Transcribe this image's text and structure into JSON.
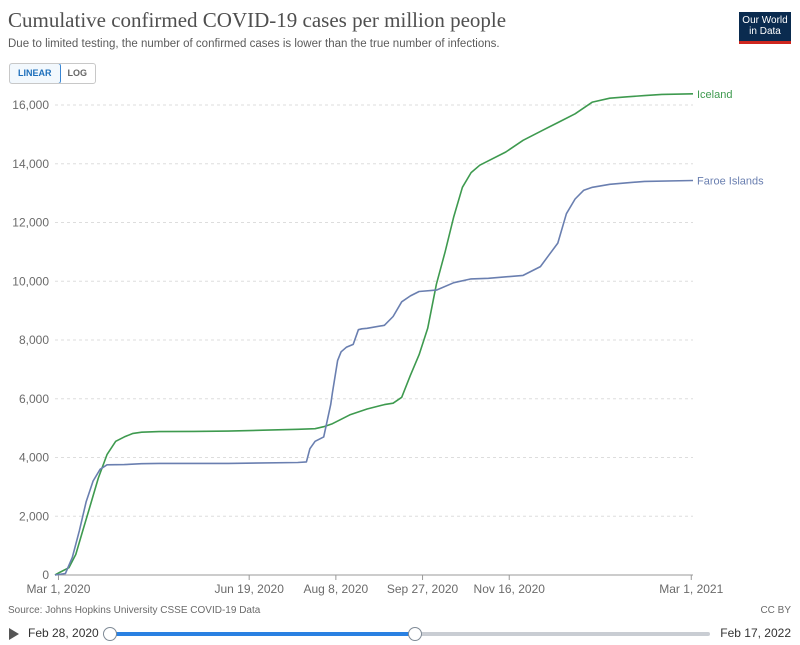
{
  "header": {
    "title": "Cumulative confirmed COVID-19 cases per million people",
    "subtitle": "Due to limited testing, the number of confirmed cases is lower than the true number of infections.",
    "logo_line1": "Our World",
    "logo_line2": "in Data"
  },
  "controls": {
    "linear_label": "LINEAR",
    "log_label": "LOG",
    "active_scale": "linear"
  },
  "footer": {
    "source": "Source: Johns Hopkins University CSSE COVID-19 Data",
    "license": "CC BY"
  },
  "timeline": {
    "start_date": "Feb 28, 2020",
    "end_date": "Feb 17, 2022",
    "range_start_fraction": 0.0,
    "range_end_fraction": 0.508
  },
  "colors": {
    "iceland": "#3e9a4f",
    "faroe": "#6a7fb0",
    "grid": "#dddddd",
    "axis_text": "#6b6b6b"
  },
  "chart_data": {
    "type": "line",
    "title": "Cumulative confirmed COVID-19 cases per million people",
    "xlabel": "",
    "ylabel": "",
    "x_unit": "days since Feb 28, 2020",
    "xlim": [
      0,
      368
    ],
    "ylim": [
      0,
      16000
    ],
    "y_ticks": [
      0,
      2000,
      4000,
      6000,
      8000,
      10000,
      12000,
      14000,
      16000
    ],
    "y_tick_labels": [
      "0",
      "2,000",
      "4,000",
      "6,000",
      "8,000",
      "10,000",
      "12,000",
      "14,000",
      "16,000"
    ],
    "x_ticks": [
      2,
      112,
      162,
      212,
      262,
      367
    ],
    "x_tick_labels": [
      "Mar 1, 2020",
      "Jun 19, 2020",
      "Aug 8, 2020",
      "Sep 27, 2020",
      "Nov 16, 2020",
      "Mar 1, 2021"
    ],
    "grid": true,
    "series": [
      {
        "name": "Iceland",
        "label": "Iceland",
        "color": "#3e9a4f",
        "x": [
          0,
          3,
          8,
          12,
          16,
          20,
          25,
          30,
          35,
          40,
          45,
          50,
          60,
          80,
          100,
          120,
          140,
          150,
          155,
          160,
          165,
          170,
          180,
          190,
          195,
          200,
          205,
          210,
          215,
          220,
          225,
          230,
          235,
          240,
          245,
          250,
          260,
          270,
          280,
          290,
          300,
          310,
          320,
          330,
          340,
          350,
          368
        ],
        "y": [
          0,
          100,
          250,
          700,
          1500,
          2300,
          3300,
          4100,
          4550,
          4700,
          4820,
          4860,
          4880,
          4890,
          4900,
          4930,
          4960,
          4980,
          5050,
          5150,
          5300,
          5450,
          5650,
          5800,
          5850,
          6050,
          6800,
          7500,
          8400,
          9900,
          11000,
          12200,
          13200,
          13700,
          13950,
          14100,
          14400,
          14800,
          15100,
          15400,
          15700,
          16100,
          16230,
          16280,
          16320,
          16360,
          16380
        ]
      },
      {
        "name": "Faroe Islands",
        "label": "Faroe Islands",
        "color": "#6a7fb0",
        "x": [
          0,
          6,
          10,
          14,
          18,
          22,
          26,
          30,
          40,
          50,
          60,
          100,
          140,
          145,
          147,
          150,
          155,
          159,
          160,
          163,
          165,
          168,
          172,
          175,
          177,
          180,
          190,
          195,
          200,
          205,
          210,
          220,
          230,
          240,
          250,
          270,
          280,
          285,
          290,
          295,
          300,
          305,
          310,
          320,
          330,
          340,
          368
        ],
        "y": [
          0,
          50,
          600,
          1500,
          2500,
          3200,
          3600,
          3750,
          3760,
          3790,
          3800,
          3800,
          3830,
          3850,
          4300,
          4550,
          4700,
          5800,
          6200,
          7300,
          7600,
          7750,
          7850,
          8350,
          8380,
          8400,
          8500,
          8800,
          9300,
          9500,
          9650,
          9700,
          9950,
          10080,
          10100,
          10200,
          10500,
          10900,
          11300,
          12300,
          12800,
          13100,
          13200,
          13300,
          13350,
          13400,
          13430
        ]
      }
    ]
  }
}
